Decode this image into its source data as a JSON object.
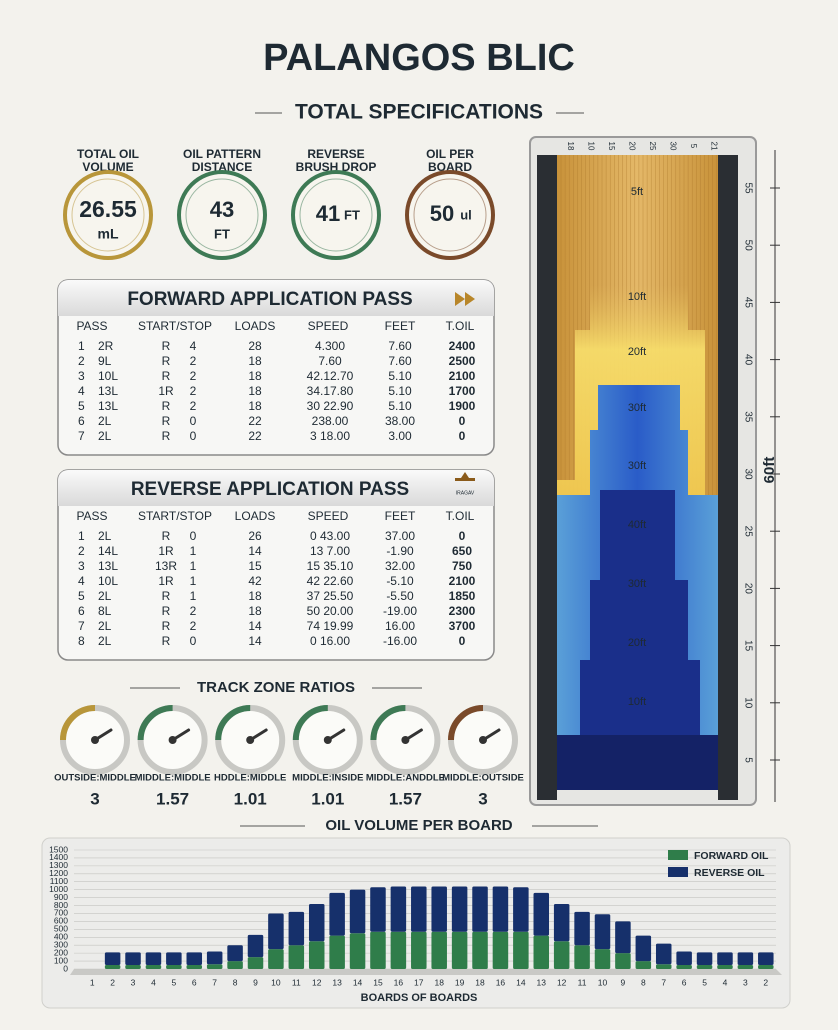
{
  "title": "PALANGOS BLIC",
  "specs_title": "TOTAL SPECIFICATIONS",
  "specs": [
    {
      "label": [
        "TOTAL OIL",
        "VOLUME"
      ],
      "value": "26.55",
      "unit": "mL"
    },
    {
      "label": [
        "OIL PATTERN",
        "DISTANCE"
      ],
      "value": "43",
      "unit": "FT"
    },
    {
      "label": [
        "REVERSE",
        "BRUSH DROP"
      ],
      "value": "41",
      "unit": "FT"
    },
    {
      "label": [
        "OIL PER",
        "BOARD"
      ],
      "value": "50",
      "unit": "ul"
    }
  ],
  "forward_pass": {
    "title": "FORWARD APPLICATION PASS",
    "headers": [
      "PASS",
      "START/STOP",
      "LOADS",
      "SPEED",
      "FEET",
      "T.OIL"
    ],
    "rows": [
      [
        "1",
        "2R",
        "R",
        "4",
        "28",
        "4.300",
        "7.60",
        "2400"
      ],
      [
        "2",
        "9L",
        "R",
        "2",
        "18",
        "7.60",
        "7.60",
        "2500"
      ],
      [
        "3",
        "10L",
        "R",
        "2",
        "18",
        "42.12.70",
        "5.10",
        "2100"
      ],
      [
        "4",
        "13L",
        "1R",
        "2",
        "18",
        "34.17.80",
        "5.10",
        "1700"
      ],
      [
        "5",
        "13L",
        "R",
        "2",
        "18",
        "30 22.90",
        "5.10",
        "1900"
      ],
      [
        "6",
        "2L",
        "R",
        "0",
        "22",
        "238.00",
        "38.00",
        "0"
      ],
      [
        "7",
        "2L",
        "R",
        "0",
        "22",
        "3 18.00",
        "3.00",
        "0"
      ]
    ]
  },
  "reverse_pass": {
    "title": "REVERSE APPLICATION PASS",
    "icon_label": "IRAGAV",
    "headers": [
      "PASS",
      "START/STOP",
      "LOADS",
      "SPEED",
      "FEET",
      "T.OIL"
    ],
    "rows": [
      [
        "1",
        "2L",
        "R",
        "0",
        "26",
        "0 43.00",
        "37.00",
        "0"
      ],
      [
        "2",
        "14L",
        "1R",
        "1",
        "14",
        "13 7.00",
        "-1.90",
        "650"
      ],
      [
        "3",
        "13L",
        "13R",
        "1",
        "15",
        "15 35.10",
        "32.00",
        "750"
      ],
      [
        "4",
        "10L",
        "1R",
        "1",
        "42",
        "42 22.60",
        "-5.10",
        "2100"
      ],
      [
        "5",
        "2L",
        "R",
        "1",
        "18",
        "37 25.50",
        "-5.50",
        "1850"
      ],
      [
        "6",
        "8L",
        "R",
        "2",
        "18",
        "50 20.00",
        "-19.00",
        "2300"
      ],
      [
        "7",
        "2L",
        "R",
        "2",
        "14",
        "74 19.99",
        "16.00",
        "3700"
      ],
      [
        "8",
        "2L",
        "R",
        "0",
        "14",
        "0 16.00",
        "-16.00",
        "0"
      ]
    ]
  },
  "zone_ratios": {
    "title": "TRACK ZONE RATIOS",
    "items": [
      {
        "label": "OUTSIDE:MIDDLE",
        "value": "3"
      },
      {
        "label": "MIDDLE:MIDDLE",
        "value": "1.57"
      },
      {
        "label": "HDDLE:MIDDLE",
        "value": "1.01"
      },
      {
        "label": "MIDDLE:INSIDE",
        "value": "1.01"
      },
      {
        "label": "MIDDLE:ANDDLE",
        "value": "1.57"
      },
      {
        "label": "MIDDLE:OUTSIDE",
        "value": "3"
      }
    ]
  },
  "lane": {
    "board_labels": [
      "18",
      "10",
      "15",
      "20",
      "25",
      "30",
      "5",
      "21"
    ],
    "axis_ticks": [
      5,
      10,
      15,
      20,
      25,
      30,
      35,
      40,
      45,
      50,
      55
    ],
    "axis_label": "60ft",
    "zone_labels": [
      "5ft",
      "10ft",
      "20ft",
      "30ft",
      "30ft",
      "40ft",
      "30ft",
      "20ft",
      "10ft"
    ]
  },
  "chart_data": {
    "type": "bar",
    "stacked": true,
    "title": "OIL VOLUME PER BOARD",
    "x_label": "BOARDS OF BOARDS",
    "legend": "top-right",
    "categories": [
      "1",
      "2",
      "3",
      "4",
      "5",
      "6",
      "7",
      "8",
      "9",
      "10",
      "11",
      "12",
      "13",
      "14",
      "15",
      "16",
      "17",
      "18",
      "19",
      "18",
      "16",
      "14",
      "13",
      "12",
      "11",
      "10",
      "9",
      "8",
      "7",
      "6",
      "5",
      "4",
      "3",
      "2"
    ],
    "series": [
      {
        "name": "FORWARD OIL",
        "color": "#2f7d4a",
        "values": [
          null,
          50,
          50,
          50,
          50,
          50,
          60,
          100,
          150,
          250,
          300,
          350,
          420,
          450,
          470,
          470,
          470,
          470,
          470,
          470,
          470,
          470,
          420,
          350,
          300,
          250,
          200,
          100,
          60,
          50,
          50,
          50,
          50,
          50
        ]
      },
      {
        "name": "REVERSE OIL",
        "color": "#16306b",
        "values": [
          null,
          160,
          160,
          160,
          160,
          160,
          160,
          200,
          280,
          450,
          420,
          470,
          540,
          550,
          560,
          570,
          570,
          570,
          570,
          570,
          570,
          560,
          540,
          470,
          420,
          440,
          400,
          320,
          260,
          170,
          160,
          160,
          160,
          160
        ]
      }
    ],
    "ylim": [
      0,
      1500
    ],
    "yticks": [
      0,
      100,
      200,
      300,
      400,
      500,
      600,
      700,
      800,
      900,
      1000,
      1100,
      1200,
      1300,
      1400,
      1500
    ],
    "grid": true
  }
}
